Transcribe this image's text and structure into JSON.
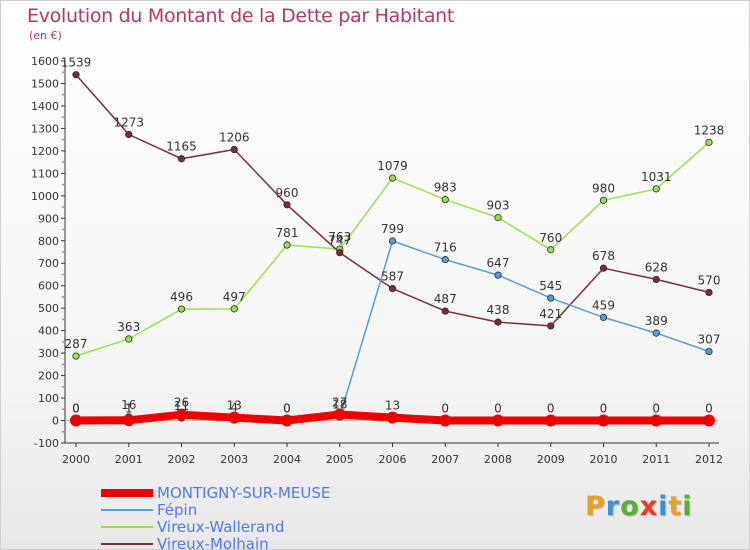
{
  "header": {
    "title": "Evolution du Montant de la Dette par Habitant",
    "subtitle": "(en €)"
  },
  "brand": {
    "text": "Proxiti",
    "letters": [
      {
        "ch": "P",
        "color": "#e8a020"
      },
      {
        "ch": "r",
        "color": "#3b8fd6"
      },
      {
        "ch": "o",
        "color": "#56b036"
      },
      {
        "ch": "x",
        "color": "#e83b2a"
      },
      {
        "ch": "i",
        "color": "#3b8fd6"
      },
      {
        "ch": "t",
        "color": "#e8a020"
      },
      {
        "ch": "i",
        "color": "#56b036"
      }
    ]
  },
  "chart_data": {
    "type": "line",
    "title": "Evolution du Montant de la Dette par Habitant",
    "subtitle": "(en €)",
    "x": [
      "2000",
      "2001",
      "2002",
      "2003",
      "2004",
      "2005",
      "2006",
      "2007",
      "2008",
      "2009",
      "2010",
      "2011",
      "2012"
    ],
    "ylim": [
      -100,
      1600
    ],
    "yticks": [
      -100,
      0,
      100,
      200,
      300,
      400,
      500,
      600,
      700,
      800,
      900,
      1000,
      1100,
      1200,
      1300,
      1400,
      1500,
      1600
    ],
    "grid": false,
    "legend_position": "bottom-left",
    "series": [
      {
        "name": "Vireux-Wallerand",
        "color": "#99dd55",
        "line_width": 1.5,
        "values": [
          287,
          363,
          496,
          497,
          781,
          763,
          1079,
          983,
          903,
          760,
          980,
          1031,
          1238
        ]
      },
      {
        "name": "Vireux-Molhain",
        "color": "#7a2e35",
        "line_width": 1.5,
        "values": [
          1539,
          1273,
          1165,
          1206,
          960,
          747,
          587,
          487,
          438,
          421,
          678,
          628,
          570
        ]
      },
      {
        "name": "Fépin",
        "color": "#5a9bd5",
        "line_width": 1.5,
        "values": [
          0,
          16,
          11,
          4,
          0,
          18,
          799,
          716,
          647,
          545,
          459,
          389,
          307
        ]
      },
      {
        "name": "MONTIGNY-SUR-MEUSE",
        "color": "#ee0000",
        "line_width": 8,
        "values": [
          0,
          1,
          26,
          13,
          0,
          27,
          13,
          0,
          0,
          0,
          0,
          0,
          0
        ]
      }
    ]
  }
}
